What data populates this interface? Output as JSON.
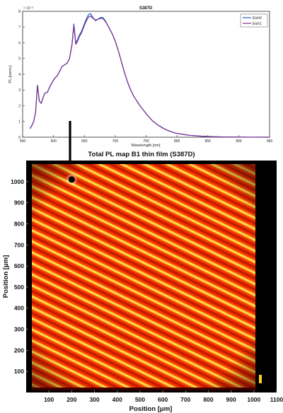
{
  "chart_data": [
    {
      "type": "line",
      "title": "S387D",
      "xlabel": "Wavelength [nm]",
      "ylabel": "PL [norm.]",
      "y_exponent": "× 10⁻³",
      "xlim": [
        550,
        950
      ],
      "ylim": [
        0,
        8
      ],
      "xticks": [
        "550",
        "600",
        "650",
        "700",
        "750",
        "800",
        "850",
        "900",
        "950"
      ],
      "yticks": [
        "0",
        "1",
        "2",
        "3",
        "4",
        "5",
        "6",
        "7",
        "8"
      ],
      "legend_position": "top-right",
      "grid": false,
      "series": [
        {
          "name": "Etch0",
          "color": "#1f5fbf",
          "x": [
            562,
            565,
            568,
            571,
            574,
            577,
            580,
            583,
            586,
            590,
            594,
            598,
            602,
            606,
            610,
            614,
            618,
            622,
            626,
            630,
            633,
            636,
            639,
            642,
            645,
            648,
            651,
            654,
            657,
            660,
            664,
            668,
            672,
            676,
            680,
            684,
            688,
            692,
            696,
            700,
            705,
            710,
            715,
            720,
            725,
            730,
            735,
            740,
            745,
            750,
            760,
            770,
            780,
            790,
            800,
            820,
            840,
            860,
            880,
            900,
            920,
            950
          ],
          "y": [
            0.55,
            0.75,
            1.0,
            1.6,
            3.3,
            2.3,
            2.15,
            2.5,
            2.8,
            2.85,
            3.2,
            3.5,
            3.75,
            3.9,
            4.2,
            4.5,
            4.6,
            4.7,
            5.0,
            5.9,
            7.2,
            6.0,
            6.2,
            6.5,
            6.7,
            7.0,
            7.3,
            7.6,
            7.8,
            7.85,
            7.6,
            7.4,
            7.5,
            7.6,
            7.6,
            7.4,
            7.1,
            6.8,
            6.5,
            6.1,
            5.5,
            4.8,
            4.1,
            3.5,
            3.0,
            2.6,
            2.3,
            2.0,
            1.75,
            1.5,
            1.05,
            0.75,
            0.52,
            0.35,
            0.24,
            0.12,
            0.06,
            0.03,
            0.01,
            0.005,
            0.002,
            0.001
          ]
        },
        {
          "name": "Etch1",
          "color": "#7b2d8e",
          "x": [
            562,
            565,
            568,
            571,
            574,
            577,
            580,
            583,
            586,
            590,
            594,
            598,
            602,
            606,
            610,
            614,
            618,
            622,
            626,
            630,
            633,
            636,
            639,
            642,
            645,
            648,
            651,
            654,
            657,
            660,
            664,
            668,
            672,
            676,
            680,
            684,
            688,
            692,
            696,
            700,
            705,
            710,
            715,
            720,
            725,
            730,
            735,
            740,
            745,
            750,
            760,
            770,
            780,
            790,
            800,
            820,
            840,
            860,
            880,
            900,
            920,
            950
          ],
          "y": [
            0.55,
            0.75,
            1.0,
            1.6,
            3.3,
            2.3,
            2.15,
            2.5,
            2.8,
            2.85,
            3.2,
            3.5,
            3.75,
            3.9,
            4.2,
            4.5,
            4.6,
            4.7,
            5.0,
            5.9,
            7.1,
            5.9,
            6.1,
            6.4,
            6.6,
            6.9,
            7.2,
            7.45,
            7.65,
            7.7,
            7.55,
            7.45,
            7.5,
            7.55,
            7.55,
            7.35,
            7.1,
            6.8,
            6.5,
            6.1,
            5.5,
            4.8,
            4.1,
            3.5,
            3.0,
            2.6,
            2.3,
            2.0,
            1.75,
            1.5,
            1.05,
            0.75,
            0.52,
            0.35,
            0.24,
            0.12,
            0.06,
            0.03,
            0.01,
            0.005,
            0.002,
            0.001
          ]
        }
      ]
    },
    {
      "type": "heatmap",
      "title": "Total PL map B1 thin film (S387D)",
      "xlabel": "Position [μm]",
      "ylabel": "Position [μm]",
      "xticks": [
        "100",
        "200",
        "300",
        "400",
        "500",
        "600",
        "700",
        "800",
        "900",
        "1000",
        "1100"
      ],
      "yticks": [
        "100",
        "200",
        "300",
        "400",
        "500",
        "600",
        "700",
        "800",
        "900",
        "1000"
      ],
      "xlim": [
        0,
        1100
      ],
      "ylim": [
        0,
        1100
      ],
      "colormap": [
        "#000000",
        "#5a0000",
        "#c01000",
        "#ff4a00",
        "#ffb000",
        "#ffe36a"
      ],
      "marker": {
        "x": 200,
        "y": 1010
      },
      "pattern": "diagonal-stripes"
    }
  ]
}
